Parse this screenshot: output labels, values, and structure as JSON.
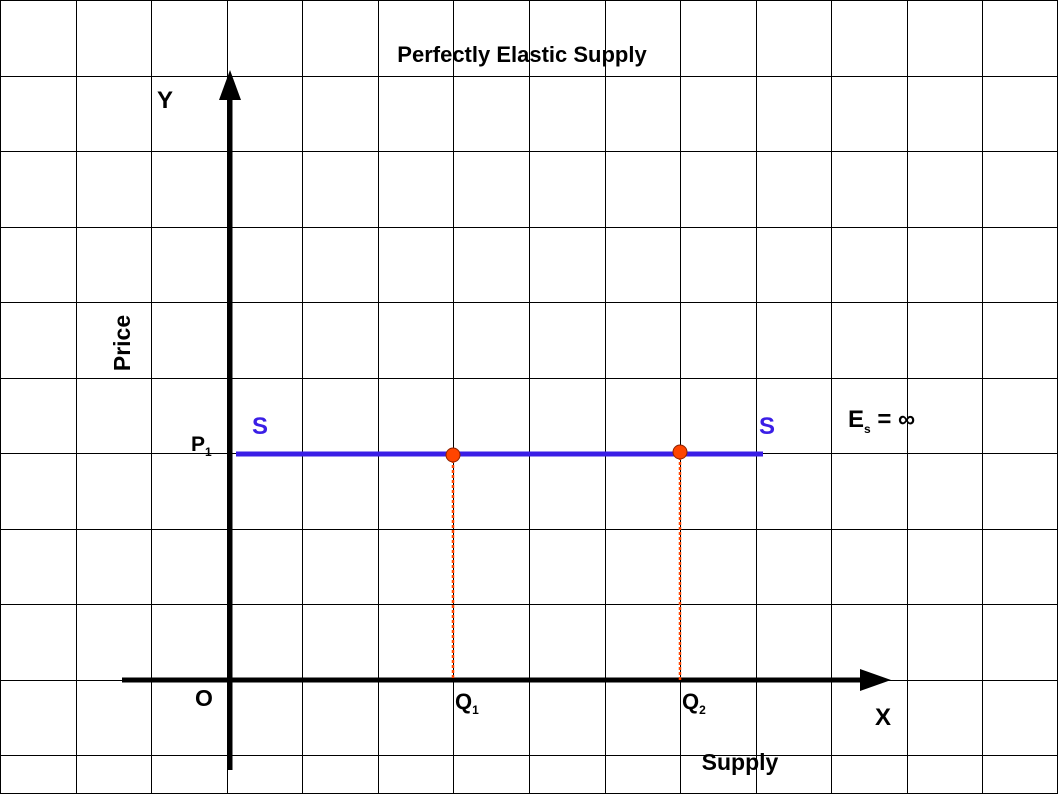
{
  "title": "Perfectly Elastic Supply",
  "axes": {
    "y_symbol": "Y",
    "x_symbol": "X",
    "y_label": "Price",
    "x_label": "Supply",
    "origin": "O"
  },
  "price_level": {
    "main": "P",
    "sub": "1"
  },
  "supply_curve": {
    "left_label": "S",
    "right_label": "S"
  },
  "elasticity": {
    "main": "E",
    "sub": "s",
    "rest": " = ∞"
  },
  "quantities": [
    {
      "main": "Q",
      "sub": "1"
    },
    {
      "main": "Q",
      "sub": "2"
    }
  ]
}
